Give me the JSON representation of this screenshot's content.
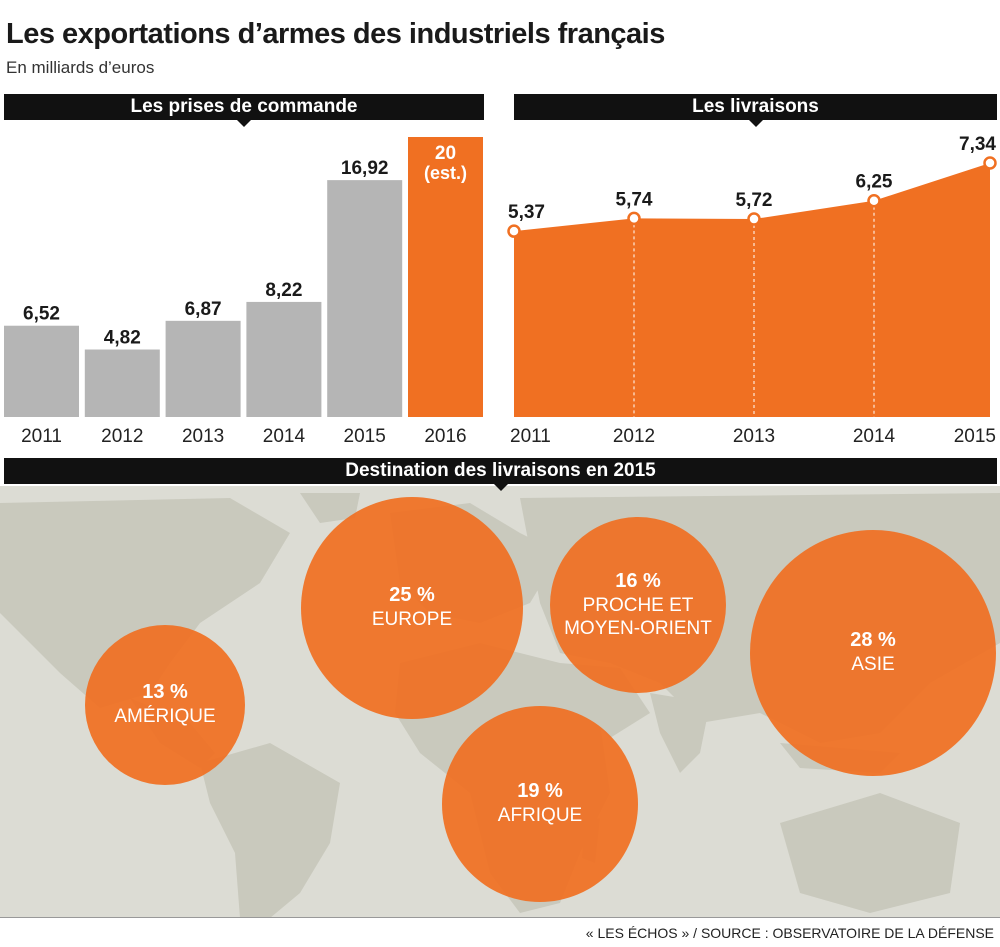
{
  "header": {
    "title": "Les exportations d’armes des industriels français",
    "subtitle": "En milliards d’euros"
  },
  "sections": {
    "orders": "Les prises de commande",
    "deliveries": "Les livraisons",
    "destinations": "Destination des livraisons en 2015"
  },
  "colors": {
    "gray": "#b5b5b5",
    "orange": "#f07022",
    "black": "#111111",
    "land": "#c9c9bd",
    "sea": "#ffffff"
  },
  "chart_data": [
    {
      "type": "bar",
      "title": "Les prises de commande",
      "categories": [
        "2011",
        "2012",
        "2013",
        "2014",
        "2015",
        "2016"
      ],
      "values": [
        6.52,
        4.82,
        6.87,
        8.22,
        16.92,
        20
      ],
      "labels": [
        "6,52",
        "4,82",
        "6,87",
        "8,22",
        "16,92",
        "20"
      ],
      "highlight_label_suffix": "(est.)",
      "highlight_index": 5,
      "ylim": [
        0,
        20
      ]
    },
    {
      "type": "area",
      "title": "Les livraisons",
      "x": [
        "2011",
        "2012",
        "2013",
        "2014",
        "2015"
      ],
      "values": [
        5.37,
        5.74,
        5.72,
        6.25,
        7.34
      ],
      "labels": [
        "5,37",
        "5,74",
        "5,72",
        "6,25",
        "7,34"
      ],
      "ylim": [
        0,
        7.34
      ]
    },
    {
      "type": "bubble-map",
      "title": "Destination des livraisons en 2015",
      "regions": [
        {
          "name": "AMÉRIQUE",
          "share": 13,
          "label": "13 %"
        },
        {
          "name": "EUROPE",
          "share": 25,
          "label": "25 %"
        },
        {
          "name": "PROCHE ET MOYEN-ORIENT",
          "share": 16,
          "label": "16 %",
          "lines": [
            "PROCHE ET",
            "MOYEN-ORIENT"
          ]
        },
        {
          "name": "AFRIQUE",
          "share": 19,
          "label": "19 %"
        },
        {
          "name": "ASIE",
          "share": 28,
          "label": "28 %"
        }
      ]
    }
  ],
  "footer": {
    "source": "« LES ÉCHOS » / SOURCE : OBSERVATOIRE DE LA DÉFENSE"
  }
}
